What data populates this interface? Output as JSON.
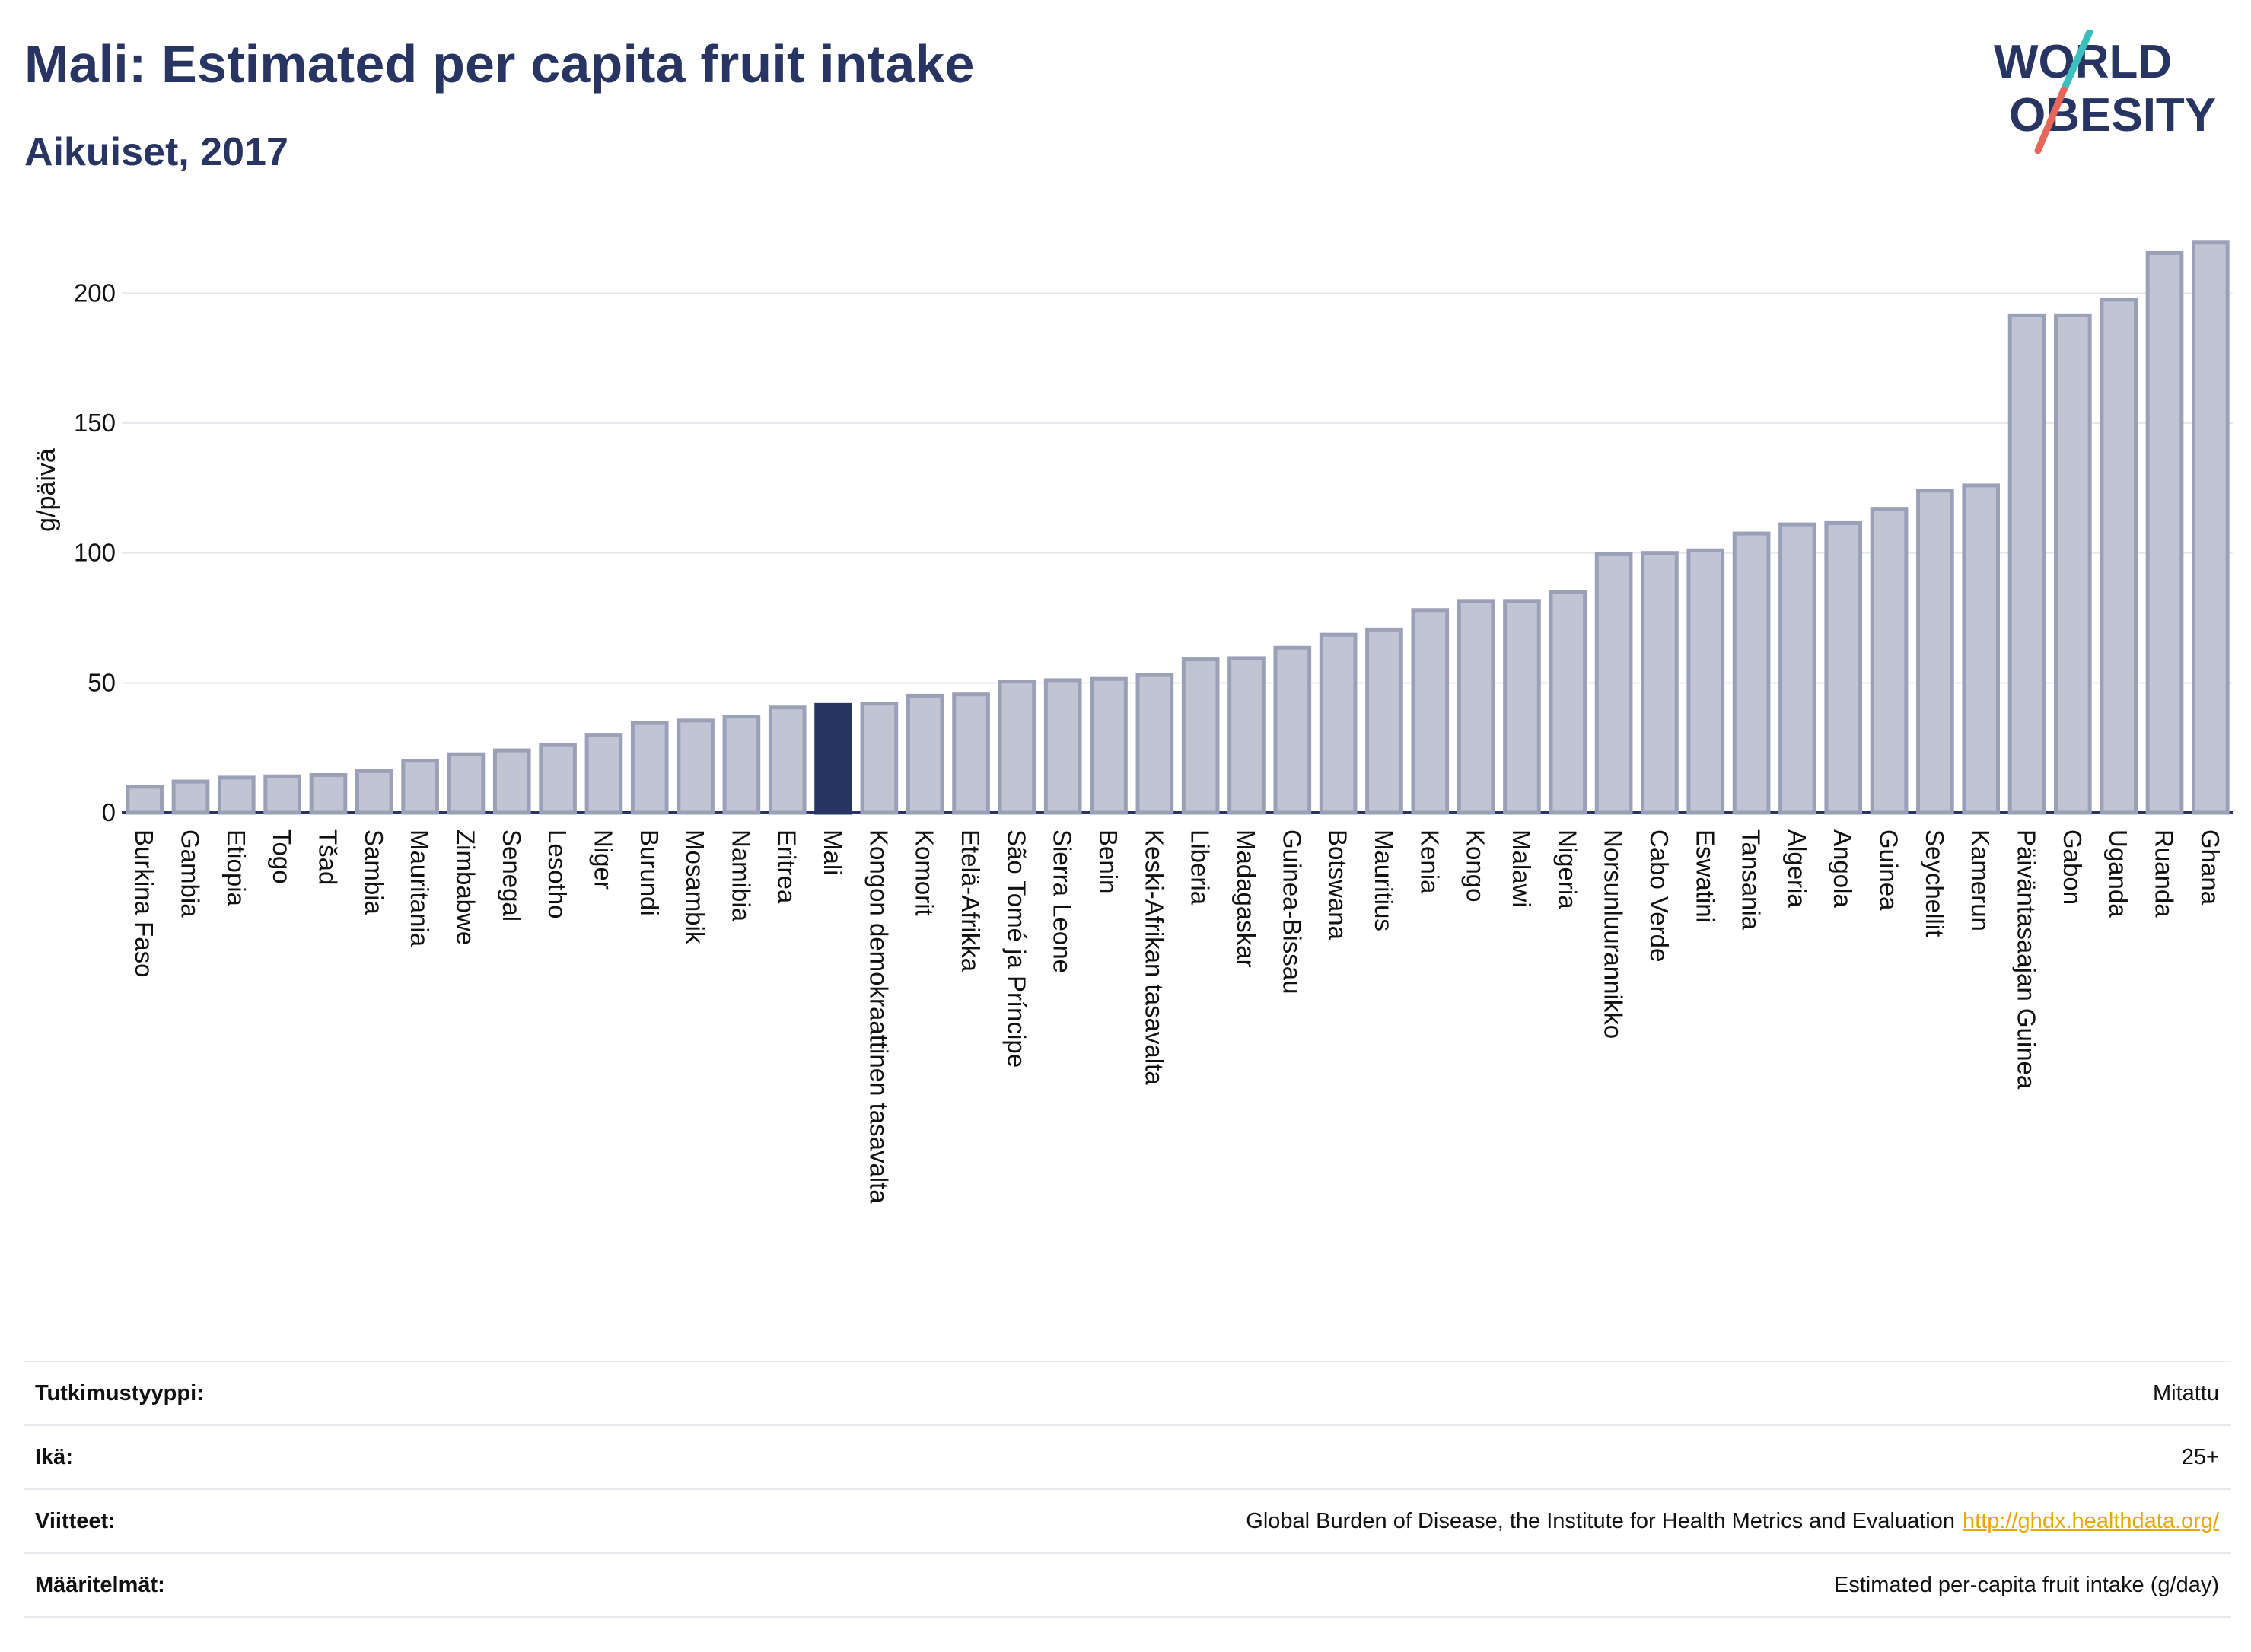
{
  "header": {
    "title": "Mali: Estimated per capita fruit intake",
    "subtitle": "Aikuiset, 2017"
  },
  "logo": {
    "line1": "WORLD",
    "line2": "OBESITY"
  },
  "colors": {
    "highlight": "#283462",
    "bar_fill": "#c0c4d3",
    "bar_stroke": "#9aa0b8",
    "text": "#283462",
    "grid": "#e6e8ee",
    "link": "#e9a800",
    "logo_teal": "#3bbfbf",
    "logo_red": "#e8655a"
  },
  "chart_data": {
    "type": "bar",
    "ylabel": "g/päivä",
    "ylim": [
      0,
      225
    ],
    "yticks": [
      0,
      50,
      100,
      150,
      200
    ],
    "highlight": "Mali",
    "grid": true,
    "categories": [
      "Burkina Faso",
      "Gambia",
      "Etiopia",
      "Togo",
      "Tšad",
      "Sambia",
      "Mauritania",
      "Zimbabwe",
      "Senegal",
      "Lesotho",
      "Niger",
      "Burundi",
      "Mosambik",
      "Namibia",
      "Eritrea",
      "Mali",
      "Kongon demokraattinen tasavalta",
      "Komorit",
      "Etelä-Afrikka",
      "São Tomé ja Príncipe",
      "Sierra Leone",
      "Benin",
      "Keski-Afrikan tasavalta",
      "Liberia",
      "Madagaskar",
      "Guinea-Bissau",
      "Botswana",
      "Mauritius",
      "Kenia",
      "Kongo",
      "Malawi",
      "Nigeria",
      "Norsunluurannikko",
      "Cabo Verde",
      "Eswatini",
      "Tansania",
      "Algeria",
      "Angola",
      "Guinea",
      "Seychellit",
      "Kamerun",
      "Päiväntasaajan Guinea",
      "Gabon",
      "Uganda",
      "Ruanda",
      "Ghana"
    ],
    "values": [
      10,
      12,
      13.5,
      14,
      14.5,
      16,
      20,
      22.5,
      24,
      26,
      30,
      34.5,
      35.5,
      37,
      40.5,
      41.5,
      42,
      45,
      45.5,
      50.5,
      51,
      51.5,
      53,
      59,
      59.5,
      63.5,
      68.5,
      70.5,
      78,
      81.5,
      81.5,
      85,
      99.5,
      100,
      101,
      107.5,
      111,
      111.5,
      117,
      124,
      126,
      191.5,
      191.5,
      197.5,
      215.5,
      219.5
    ]
  },
  "info": {
    "rows": [
      {
        "label": "Tutkimustyyppi:",
        "value": "Mitattu"
      },
      {
        "label": "Ikä:",
        "value": "25+"
      },
      {
        "label": "Viitteet:",
        "value": "Global Burden of Disease, the Institute for Health Metrics and Evaluation",
        "link": "http://ghdx.healthdata.org/"
      },
      {
        "label": "Määritelmät:",
        "value": "Estimated per-capita fruit intake (g/day)"
      }
    ]
  }
}
